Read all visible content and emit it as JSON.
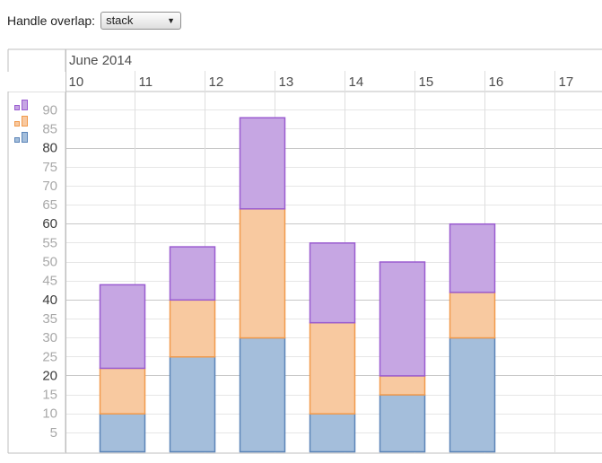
{
  "overlap_control": {
    "label": "Handle overlap:",
    "selected": "stack"
  },
  "chart_data": {
    "type": "bar",
    "stacked": true,
    "month_label": "June 2014",
    "day_ticks": [
      "10",
      "11",
      "12",
      "13",
      "14",
      "15",
      "16",
      "17"
    ],
    "categories": [
      "11",
      "12",
      "13",
      "14",
      "15",
      "16"
    ],
    "series": [
      {
        "values": [
          10,
          25,
          30,
          10,
          15,
          30
        ],
        "fill": "#a4bedb",
        "stroke": "#5b84b8"
      },
      {
        "values": [
          12,
          15,
          34,
          24,
          5,
          12
        ],
        "fill": "#f8c9a0",
        "stroke": "#f19a4c"
      },
      {
        "values": [
          22,
          14,
          24,
          21,
          30,
          18
        ],
        "fill": "#c6a6e3",
        "stroke": "#9a5cd0"
      }
    ],
    "y_ticks": [
      5,
      10,
      15,
      20,
      25,
      30,
      35,
      40,
      45,
      50,
      55,
      60,
      65,
      70,
      75,
      80,
      85,
      90
    ],
    "y_major_ticks": [
      20,
      40,
      60,
      80
    ],
    "ylim": [
      0,
      90
    ],
    "grid": true,
    "legend": "top-left"
  }
}
